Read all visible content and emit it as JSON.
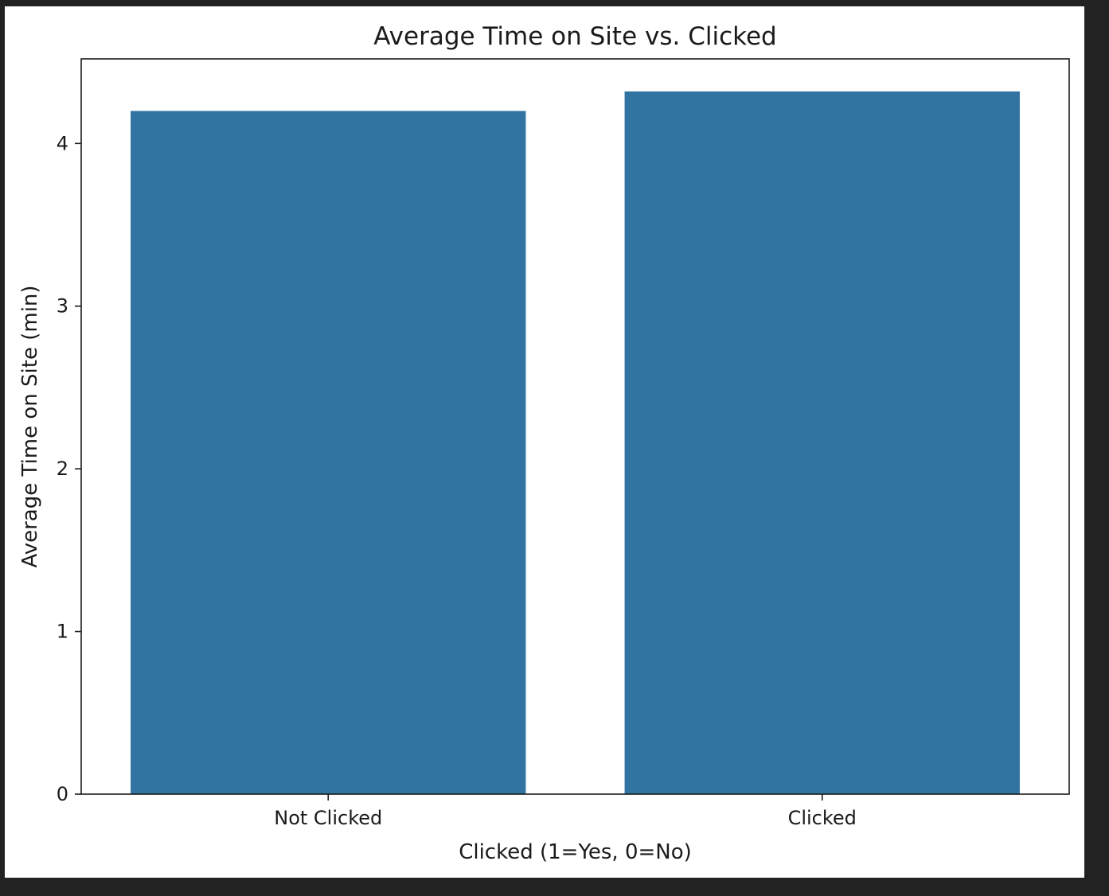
{
  "chart_data": {
    "type": "bar",
    "title": "Average Time on Site vs. Clicked",
    "xlabel": "Clicked (1=Yes, 0=No)",
    "ylabel": "Average Time on Site (min)",
    "categories": [
      "Not Clicked",
      "Clicked"
    ],
    "values": [
      4.2,
      4.32
    ],
    "ylim": [
      0,
      4.52
    ],
    "yticks": [
      0,
      1,
      2,
      3,
      4
    ],
    "bar_color": "#3274a1",
    "grid": false,
    "legend": "none"
  }
}
